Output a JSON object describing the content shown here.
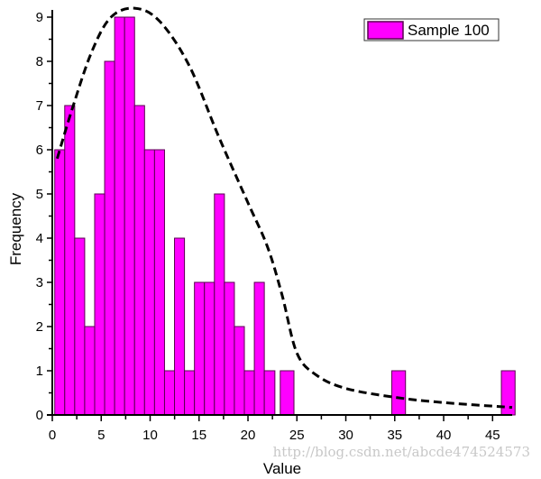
{
  "chart_data": {
    "type": "bar",
    "subtype": "histogram",
    "xlabel": "Value",
    "ylabel": "Frequency",
    "xlim": [
      0,
      47
    ],
    "ylim": [
      0,
      9
    ],
    "x_ticks": [
      0,
      5,
      10,
      15,
      20,
      25,
      30,
      35,
      40,
      45
    ],
    "y_ticks": [
      0,
      1,
      2,
      3,
      4,
      5,
      6,
      7,
      8,
      9
    ],
    "grid": false,
    "legend": {
      "position": "top-right",
      "entries": [
        "Sample 100"
      ]
    },
    "bar_color": "#ff00ff",
    "bar_edge_color": "#5a0050",
    "series": [
      {
        "name": "Sample 100",
        "bins": [
          {
            "from": 0.25,
            "to": 1.27,
            "count": 6
          },
          {
            "from": 1.27,
            "to": 2.29,
            "count": 7
          },
          {
            "from": 2.29,
            "to": 3.31,
            "count": 4
          },
          {
            "from": 3.31,
            "to": 4.33,
            "count": 2
          },
          {
            "from": 4.33,
            "to": 5.35,
            "count": 5
          },
          {
            "from": 5.35,
            "to": 6.37,
            "count": 8
          },
          {
            "from": 6.37,
            "to": 7.39,
            "count": 9
          },
          {
            "from": 7.39,
            "to": 8.41,
            "count": 9
          },
          {
            "from": 8.41,
            "to": 9.43,
            "count": 7
          },
          {
            "from": 9.43,
            "to": 10.45,
            "count": 6
          },
          {
            "from": 10.45,
            "to": 11.47,
            "count": 6
          },
          {
            "from": 11.47,
            "to": 12.49,
            "count": 1
          },
          {
            "from": 12.49,
            "to": 13.51,
            "count": 4
          },
          {
            "from": 13.51,
            "to": 14.53,
            "count": 1
          },
          {
            "from": 14.53,
            "to": 15.55,
            "count": 3
          },
          {
            "from": 15.55,
            "to": 16.57,
            "count": 3
          },
          {
            "from": 16.57,
            "to": 17.59,
            "count": 5
          },
          {
            "from": 17.59,
            "to": 18.61,
            "count": 3
          },
          {
            "from": 18.61,
            "to": 19.63,
            "count": 2
          },
          {
            "from": 19.63,
            "to": 20.65,
            "count": 1
          },
          {
            "from": 20.65,
            "to": 21.67,
            "count": 3
          },
          {
            "from": 21.67,
            "to": 22.75,
            "count": 1
          },
          {
            "from": 23.3,
            "to": 24.7,
            "count": 1
          },
          {
            "from": 34.7,
            "to": 36.1,
            "count": 1
          },
          {
            "from": 45.9,
            "to": 47.3,
            "count": 1
          }
        ]
      }
    ],
    "fit_curve": {
      "style": "dashed",
      "color": "#000000",
      "points": [
        [
          0.5,
          5.8
        ],
        [
          2,
          6.9
        ],
        [
          4,
          8.2
        ],
        [
          6,
          9.0
        ],
        [
          8.5,
          9.2
        ],
        [
          11,
          8.9
        ],
        [
          14,
          7.9
        ],
        [
          17,
          6.3
        ],
        [
          20,
          4.8
        ],
        [
          22,
          3.8
        ],
        [
          23.5,
          2.7
        ],
        [
          25,
          1.4
        ],
        [
          27,
          0.9
        ],
        [
          30,
          0.6
        ],
        [
          35,
          0.4
        ],
        [
          40,
          0.28
        ],
        [
          47,
          0.17
        ]
      ]
    }
  },
  "watermark": "http://blog.csdn.net/abcde474524573"
}
